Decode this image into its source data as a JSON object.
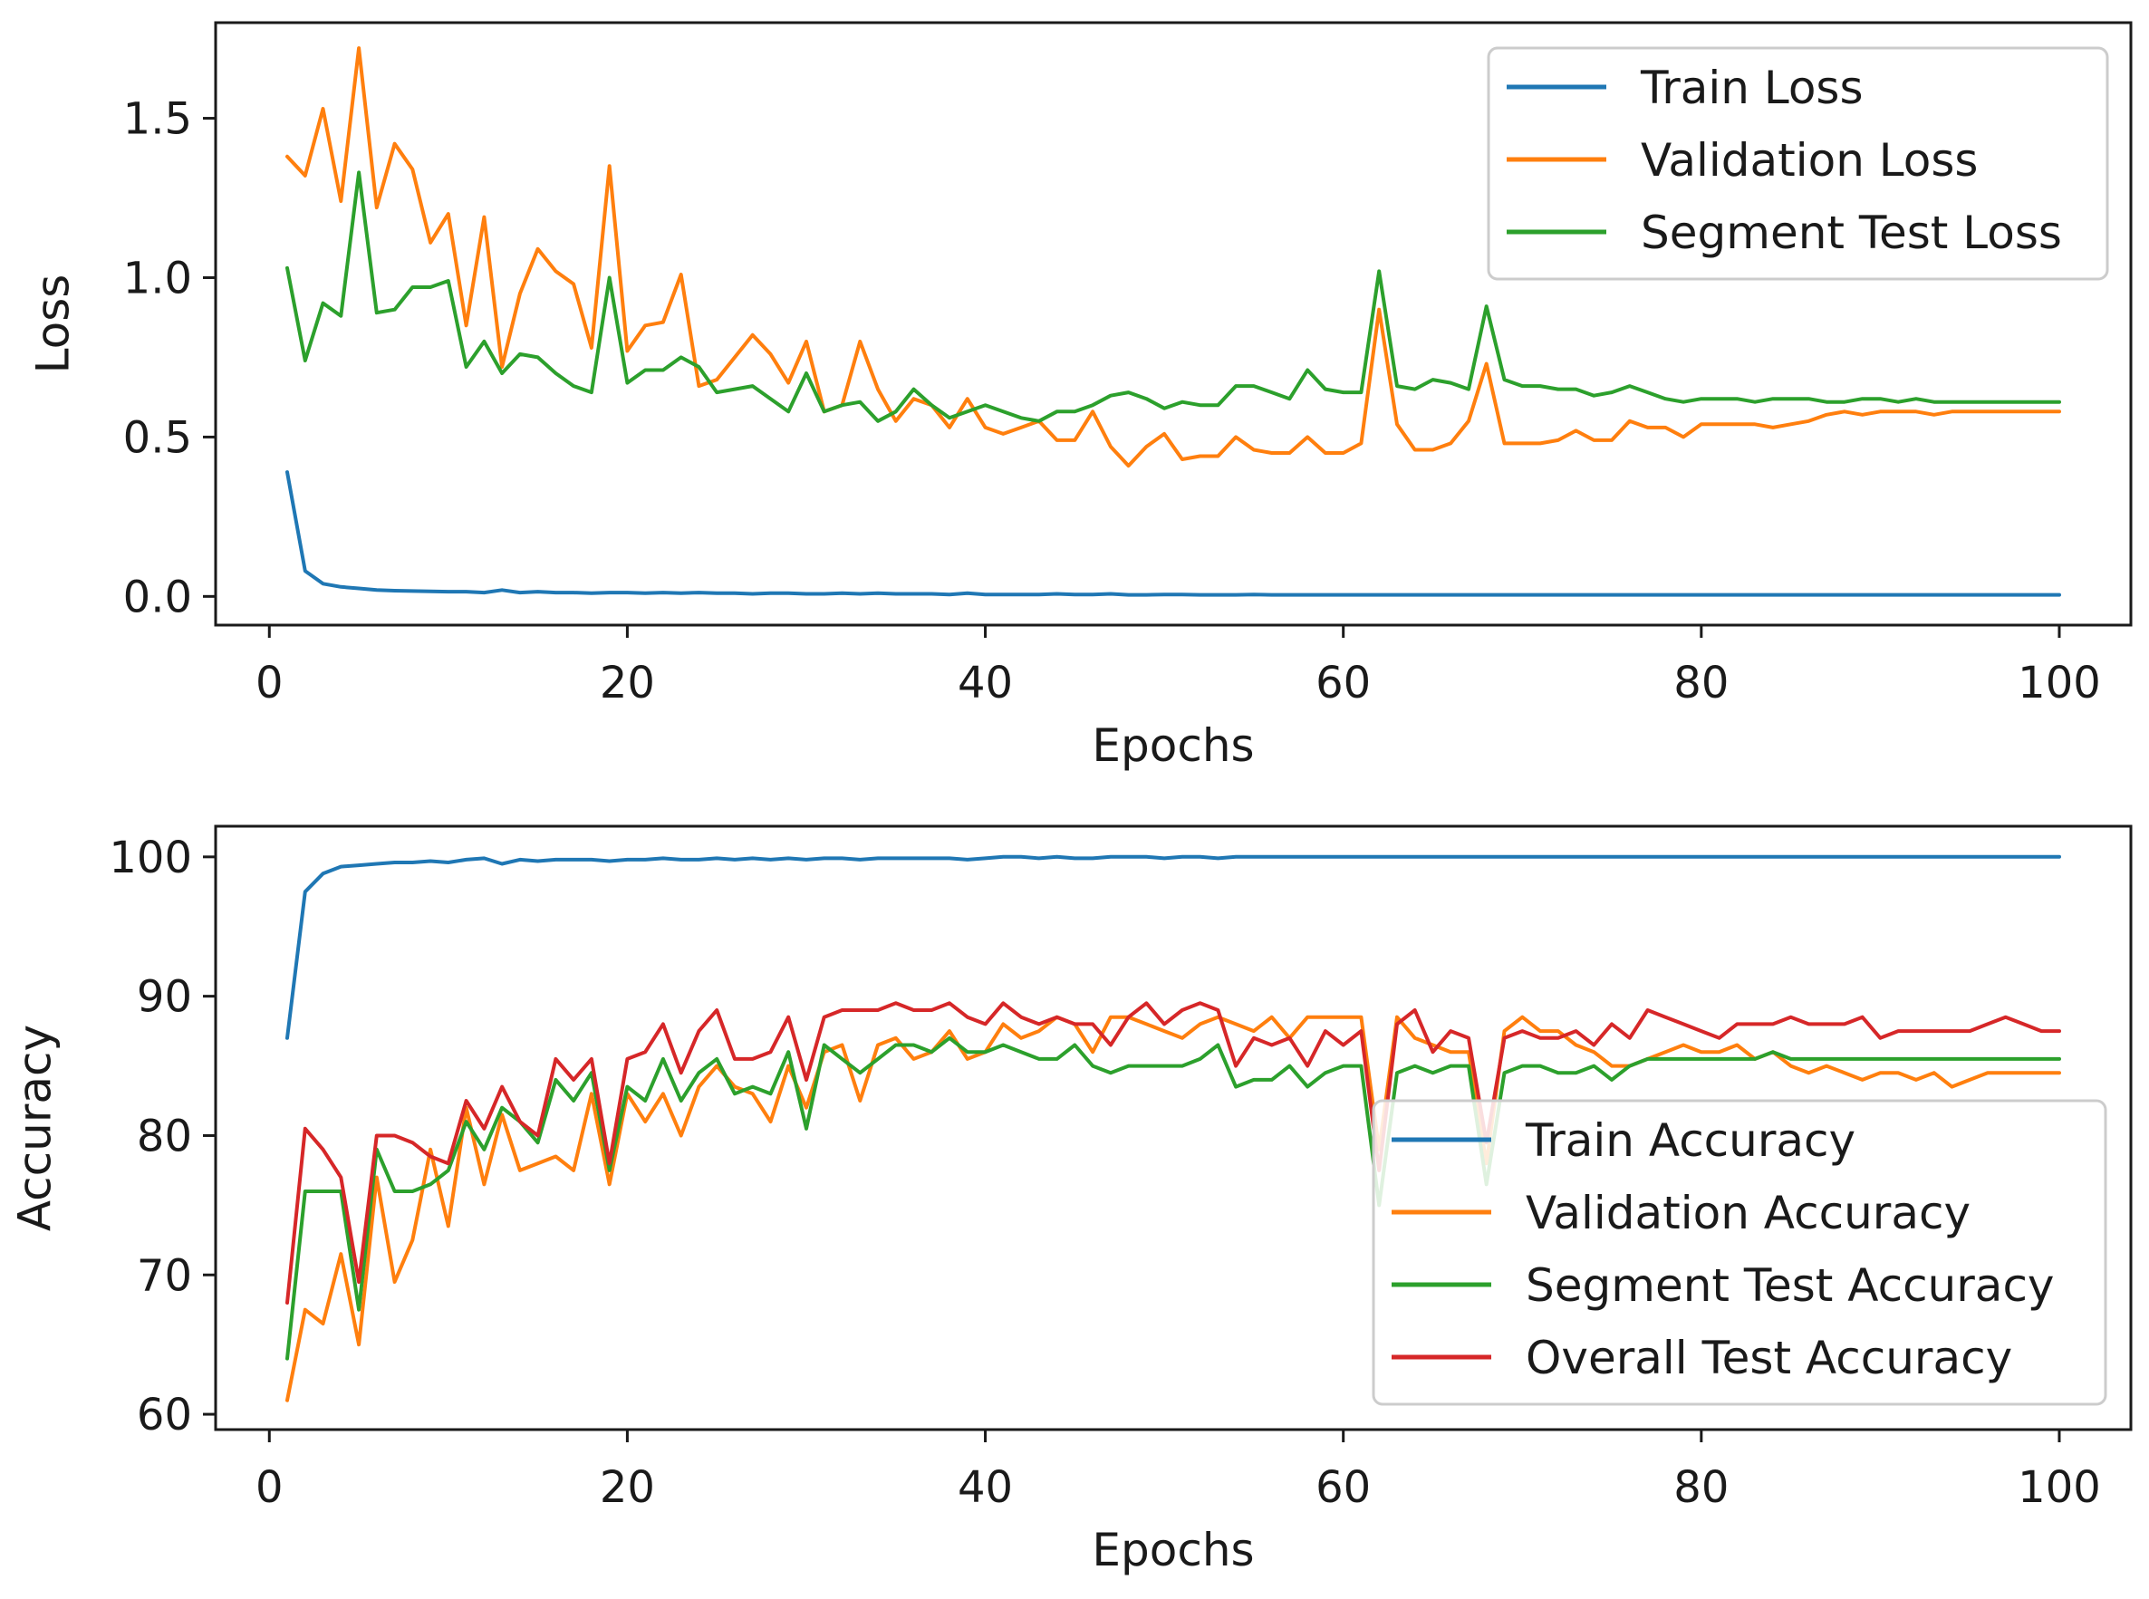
{
  "chart_data": [
    {
      "type": "line",
      "xlabel": "Epochs",
      "ylabel": "Loss",
      "xlim": [
        -3,
        104
      ],
      "ylim": [
        -0.09,
        1.8
      ],
      "xticks": [
        0,
        20,
        40,
        60,
        80,
        100
      ],
      "yticks": [
        0.0,
        0.5,
        1.0,
        1.5
      ],
      "ytick_labels": [
        "0.0",
        "0.5",
        "1.0",
        "1.5"
      ],
      "xtick_labels": [
        "0",
        "20",
        "40",
        "60",
        "80",
        "100"
      ],
      "legend_position": "upper-right",
      "series": [
        {
          "name": "Train Loss",
          "color": "#1f77b4",
          "values": [
            0.39,
            0.08,
            0.04,
            0.03,
            0.025,
            0.02,
            0.018,
            0.017,
            0.016,
            0.015,
            0.015,
            0.012,
            0.02,
            0.012,
            0.015,
            0.012,
            0.012,
            0.01,
            0.012,
            0.012,
            0.01,
            0.012,
            0.01,
            0.012,
            0.01,
            0.01,
            0.008,
            0.01,
            0.01,
            0.008,
            0.008,
            0.01,
            0.008,
            0.01,
            0.008,
            0.008,
            0.008,
            0.006,
            0.01,
            0.006,
            0.006,
            0.006,
            0.006,
            0.008,
            0.006,
            0.006,
            0.008,
            0.005,
            0.005,
            0.006,
            0.006,
            0.005,
            0.005,
            0.005,
            0.006,
            0.005,
            0.005,
            0.005,
            0.005,
            0.005,
            0.005,
            0.005,
            0.005,
            0.005,
            0.005,
            0.005,
            0.005,
            0.005,
            0.005,
            0.005,
            0.005,
            0.005,
            0.005,
            0.005,
            0.005,
            0.005,
            0.005,
            0.005,
            0.005,
            0.005,
            0.005,
            0.005,
            0.005,
            0.005,
            0.005,
            0.005,
            0.005,
            0.005,
            0.005,
            0.005,
            0.005,
            0.005,
            0.005,
            0.005,
            0.005,
            0.005,
            0.005,
            0.005,
            0.005,
            0.005
          ]
        },
        {
          "name": "Validation Loss",
          "color": "#ff7f0e",
          "values": [
            1.38,
            1.32,
            1.53,
            1.24,
            1.72,
            1.22,
            1.42,
            1.34,
            1.11,
            1.2,
            0.85,
            1.19,
            0.72,
            0.95,
            1.09,
            1.02,
            0.98,
            0.78,
            1.35,
            0.77,
            0.85,
            0.86,
            1.01,
            0.66,
            0.68,
            0.75,
            0.82,
            0.76,
            0.67,
            0.8,
            0.58,
            0.6,
            0.8,
            0.65,
            0.55,
            0.62,
            0.6,
            0.53,
            0.62,
            0.53,
            0.51,
            0.53,
            0.55,
            0.49,
            0.49,
            0.58,
            0.47,
            0.41,
            0.47,
            0.51,
            0.43,
            0.44,
            0.44,
            0.5,
            0.46,
            0.45,
            0.45,
            0.5,
            0.45,
            0.45,
            0.48,
            0.9,
            0.54,
            0.46,
            0.46,
            0.48,
            0.55,
            0.73,
            0.48,
            0.48,
            0.48,
            0.49,
            0.52,
            0.49,
            0.49,
            0.55,
            0.53,
            0.53,
            0.5,
            0.54,
            0.54,
            0.54,
            0.54,
            0.53,
            0.54,
            0.55,
            0.57,
            0.58,
            0.57,
            0.58,
            0.58,
            0.58,
            0.57,
            0.58,
            0.58,
            0.58,
            0.58,
            0.58,
            0.58,
            0.58
          ]
        },
        {
          "name": "Segment Test Loss",
          "color": "#2ca02c",
          "values": [
            1.03,
            0.74,
            0.92,
            0.88,
            1.33,
            0.89,
            0.9,
            0.97,
            0.97,
            0.99,
            0.72,
            0.8,
            0.7,
            0.76,
            0.75,
            0.7,
            0.66,
            0.64,
            1.0,
            0.67,
            0.71,
            0.71,
            0.75,
            0.72,
            0.64,
            0.65,
            0.66,
            0.62,
            0.58,
            0.7,
            0.58,
            0.6,
            0.61,
            0.55,
            0.58,
            0.65,
            0.6,
            0.56,
            0.58,
            0.6,
            0.58,
            0.56,
            0.55,
            0.58,
            0.58,
            0.6,
            0.63,
            0.64,
            0.62,
            0.59,
            0.61,
            0.6,
            0.6,
            0.66,
            0.66,
            0.64,
            0.62,
            0.71,
            0.65,
            0.64,
            0.64,
            1.02,
            0.66,
            0.65,
            0.68,
            0.67,
            0.65,
            0.91,
            0.68,
            0.66,
            0.66,
            0.65,
            0.65,
            0.63,
            0.64,
            0.66,
            0.64,
            0.62,
            0.61,
            0.62,
            0.62,
            0.62,
            0.61,
            0.62,
            0.62,
            0.62,
            0.61,
            0.61,
            0.62,
            0.62,
            0.61,
            0.62,
            0.61,
            0.61,
            0.61,
            0.61,
            0.61,
            0.61,
            0.61,
            0.61
          ]
        }
      ]
    },
    {
      "type": "line",
      "xlabel": "Epochs",
      "ylabel": "Accuracy",
      "xlim": [
        -3,
        104
      ],
      "ylim": [
        58.9,
        102.2
      ],
      "xticks": [
        0,
        20,
        40,
        60,
        80,
        100
      ],
      "yticks": [
        60,
        70,
        80,
        90,
        100
      ],
      "ytick_labels": [
        "60",
        "70",
        "80",
        "90",
        "100"
      ],
      "xtick_labels": [
        "0",
        "20",
        "40",
        "60",
        "80",
        "100"
      ],
      "legend_position": "lower-right",
      "series": [
        {
          "name": "Train Accuracy",
          "color": "#1f77b4",
          "values": [
            87.0,
            97.5,
            98.8,
            99.3,
            99.4,
            99.5,
            99.6,
            99.6,
            99.7,
            99.6,
            99.8,
            99.9,
            99.5,
            99.8,
            99.7,
            99.8,
            99.8,
            99.8,
            99.7,
            99.8,
            99.8,
            99.9,
            99.8,
            99.8,
            99.9,
            99.8,
            99.9,
            99.8,
            99.9,
            99.8,
            99.9,
            99.9,
            99.8,
            99.9,
            99.9,
            99.9,
            99.9,
            99.9,
            99.8,
            99.9,
            100,
            100,
            99.9,
            100,
            99.9,
            99.9,
            100,
            100,
            100,
            99.9,
            100,
            100,
            99.9,
            100,
            100,
            100,
            100,
            100,
            100,
            100,
            100,
            100,
            100,
            100,
            100,
            100,
            100,
            100,
            100,
            100,
            100,
            100,
            100,
            100,
            100,
            100,
            100,
            100,
            100,
            100,
            100,
            100,
            100,
            100,
            100,
            100,
            100,
            100,
            100,
            100,
            100,
            100,
            100,
            100,
            100,
            100,
            100,
            100,
            100,
            100
          ]
        },
        {
          "name": "Validation Accuracy",
          "color": "#ff7f0e",
          "values": [
            61.0,
            67.5,
            66.5,
            71.5,
            65.0,
            77.0,
            69.5,
            72.5,
            79.0,
            73.5,
            82.0,
            76.5,
            81.5,
            77.5,
            78.0,
            78.5,
            77.5,
            83.0,
            76.5,
            83.0,
            81.0,
            83.0,
            80.0,
            83.5,
            85.0,
            83.5,
            83.0,
            81.0,
            85.0,
            82.0,
            86.0,
            86.5,
            82.5,
            86.5,
            87.0,
            85.5,
            86.0,
            87.5,
            85.5,
            86.0,
            88.0,
            87.0,
            87.5,
            88.5,
            88.0,
            86.0,
            88.5,
            88.5,
            88.0,
            87.5,
            87.0,
            88.0,
            88.5,
            88.0,
            87.5,
            88.5,
            87.0,
            88.5,
            88.5,
            88.5,
            88.5,
            79.0,
            88.5,
            87.0,
            86.5,
            86.0,
            86.0,
            78.0,
            87.5,
            88.5,
            87.5,
            87.5,
            86.5,
            86.0,
            85.0,
            85.0,
            85.5,
            86.0,
            86.5,
            86.0,
            86.0,
            86.5,
            85.5,
            86.0,
            85.0,
            84.5,
            85.0,
            84.5,
            84.0,
            84.5,
            84.5,
            84.0,
            84.5,
            83.5,
            84.0,
            84.5,
            84.5,
            84.5,
            84.5,
            84.5
          ]
        },
        {
          "name": "Segment Test Accuracy",
          "color": "#2ca02c",
          "values": [
            64.0,
            76.0,
            76.0,
            76.0,
            67.5,
            79.0,
            76.0,
            76.0,
            76.5,
            77.5,
            81.0,
            79.0,
            82.0,
            81.0,
            79.5,
            84.0,
            82.5,
            84.5,
            77.5,
            83.5,
            82.5,
            85.5,
            82.5,
            84.5,
            85.5,
            83.0,
            83.5,
            83.0,
            86.0,
            80.5,
            86.5,
            85.5,
            84.5,
            85.5,
            86.5,
            86.5,
            86.0,
            87.0,
            86.0,
            86.0,
            86.5,
            86.0,
            85.5,
            85.5,
            86.5,
            85.0,
            84.5,
            85.0,
            85.0,
            85.0,
            85.0,
            85.5,
            86.5,
            83.5,
            84.0,
            84.0,
            85.0,
            83.5,
            84.5,
            85.0,
            85.0,
            75.0,
            84.5,
            85.0,
            84.5,
            85.0,
            85.0,
            76.5,
            84.5,
            85.0,
            85.0,
            84.5,
            84.5,
            85.0,
            84.0,
            85.0,
            85.5,
            85.5,
            85.5,
            85.5,
            85.5,
            85.5,
            85.5,
            86.0,
            85.5,
            85.5,
            85.5,
            85.5,
            85.5,
            85.5,
            85.5,
            85.5,
            85.5,
            85.5,
            85.5,
            85.5,
            85.5,
            85.5,
            85.5,
            85.5
          ]
        },
        {
          "name": "Overall Test Accuracy",
          "color": "#d62728",
          "values": [
            68.0,
            80.5,
            79.0,
            77.0,
            69.5,
            80.0,
            80.0,
            79.5,
            78.5,
            78.0,
            82.5,
            80.5,
            83.5,
            81.0,
            80.0,
            85.5,
            84.0,
            85.5,
            78.0,
            85.5,
            86.0,
            88.0,
            84.5,
            87.5,
            89.0,
            85.5,
            85.5,
            86.0,
            88.5,
            84.0,
            88.5,
            89.0,
            89.0,
            89.0,
            89.5,
            89.0,
            89.0,
            89.5,
            88.5,
            88.0,
            89.5,
            88.5,
            88.0,
            88.5,
            88.0,
            88.0,
            86.5,
            88.5,
            89.5,
            88.0,
            89.0,
            89.5,
            89.0,
            85.0,
            87.0,
            86.5,
            87.0,
            85.0,
            87.5,
            86.5,
            87.5,
            77.5,
            88.0,
            89.0,
            86.0,
            87.5,
            87.0,
            79.5,
            87.0,
            87.5,
            87.0,
            87.0,
            87.5,
            86.5,
            88.0,
            87.0,
            89.0,
            88.5,
            88.0,
            87.5,
            87.0,
            88.0,
            88.0,
            88.0,
            88.5,
            88.0,
            88.0,
            88.0,
            88.5,
            87.0,
            87.5,
            87.5,
            87.5,
            87.5,
            87.5,
            88.0,
            88.5,
            88.0,
            87.5,
            87.5
          ]
        }
      ]
    }
  ]
}
